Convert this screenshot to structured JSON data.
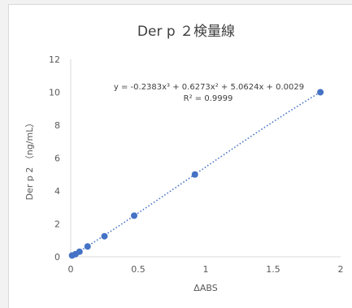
{
  "chart_data": {
    "type": "scatter",
    "title": "Der p ２検量線",
    "xlabel": "ΔABS",
    "ylabel": "Der p 2 （ng/mL）",
    "xlim": [
      0,
      2
    ],
    "ylim": [
      0,
      12
    ],
    "x_ticks": [
      "0",
      "0.5",
      "1",
      "1.5",
      "2"
    ],
    "y_ticks": [
      "0",
      "2",
      "4",
      "6",
      "8",
      "10",
      "12"
    ],
    "series": [
      {
        "x": [
          0.01,
          0.035,
          0.065,
          0.125,
          0.25,
          0.47,
          0.92,
          1.85
        ],
        "y": [
          0.08,
          0.16,
          0.31,
          0.63,
          1.25,
          2.5,
          5.0,
          10.0
        ],
        "color": "#4472c4"
      }
    ],
    "trendline": {
      "type": "polynomial",
      "color": "#4472c4",
      "style": "dotted",
      "coefficients": [
        -0.2383,
        0.6273,
        5.0624,
        0.0029
      ],
      "x_range": [
        0.01,
        1.85
      ],
      "equation": "y = -0.2383x³ + 0.6273x² + 5.0624x + 0.0029",
      "r_squared": "R² = 0.9999"
    },
    "grid": false
  }
}
